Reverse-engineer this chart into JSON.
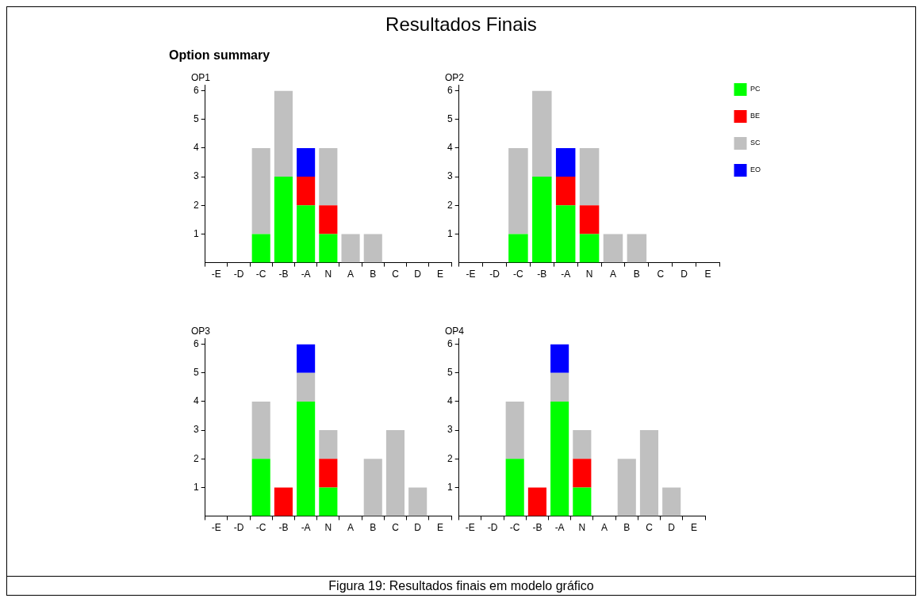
{
  "chart_data": [
    {
      "type": "bar",
      "title": "OP1",
      "annotations": [
        "Resultados Finais",
        "Option summary",
        "Figura 19: Resultados finais em modelo gráfico"
      ],
      "categories": [
        "-E",
        "-D",
        "-C",
        "-B",
        "-A",
        "N",
        "A",
        "B",
        "C",
        "D",
        "E"
      ],
      "stacked": true,
      "grid": false,
      "ylim": [
        0,
        6.2
      ],
      "yticks": [
        1,
        2,
        3,
        4,
        5,
        6
      ],
      "series": [
        {
          "color": "#00ff00",
          "values": [
            0,
            0,
            1,
            3,
            2,
            1,
            0,
            0,
            0,
            0,
            0
          ]
        },
        {
          "color": "#ff0000",
          "values": [
            0,
            0,
            0,
            0,
            1,
            1,
            0,
            0,
            0,
            0,
            0
          ]
        },
        {
          "color": "#c0c0c0",
          "values": [
            0,
            0,
            3,
            3,
            0,
            2,
            1,
            1,
            0,
            0,
            0
          ]
        },
        {
          "color": "#0000ff",
          "values": [
            0,
            0,
            0,
            0,
            1,
            0,
            0,
            0,
            0,
            0,
            0
          ]
        }
      ]
    },
    {
      "type": "bar",
      "title": "OP2",
      "legend": "right",
      "categories": [
        "-E",
        "-D",
        "-C",
        "-B",
        "-A",
        "N",
        "A",
        "B",
        "C",
        "D",
        "E"
      ],
      "stacked": true,
      "grid": false,
      "ylim": [
        0,
        6.2
      ],
      "yticks": [
        1,
        2,
        3,
        4,
        5,
        6
      ],
      "series": [
        {
          "name": "PC",
          "color": "#00ff00",
          "values": [
            0,
            0,
            1,
            3,
            2,
            1,
            0,
            0,
            0,
            0,
            0
          ]
        },
        {
          "name": "BE",
          "color": "#ff0000",
          "values": [
            0,
            0,
            0,
            0,
            1,
            1,
            0,
            0,
            0,
            0,
            0
          ]
        },
        {
          "name": "SC",
          "color": "#c0c0c0",
          "values": [
            0,
            0,
            3,
            3,
            0,
            2,
            1,
            1,
            0,
            0,
            0
          ]
        },
        {
          "name": "EO",
          "color": "#0000ff",
          "values": [
            0,
            0,
            0,
            0,
            1,
            0,
            0,
            0,
            0,
            0,
            0
          ]
        }
      ]
    },
    {
      "type": "bar",
      "title": "OP3",
      "categories": [
        "-E",
        "-D",
        "-C",
        "-B",
        "-A",
        "N",
        "A",
        "B",
        "C",
        "D",
        "E"
      ],
      "stacked": true,
      "grid": false,
      "ylim": [
        0,
        6.2
      ],
      "yticks": [
        1,
        2,
        3,
        4,
        5,
        6
      ],
      "series": [
        {
          "color": "#00ff00",
          "values": [
            0,
            0,
            2,
            0,
            4,
            1,
            0,
            0,
            0,
            0,
            0
          ]
        },
        {
          "color": "#ff0000",
          "values": [
            0,
            0,
            0,
            1,
            0,
            1,
            0,
            0,
            0,
            0,
            0
          ]
        },
        {
          "color": "#c0c0c0",
          "values": [
            0,
            0,
            2,
            0,
            1,
            1,
            0,
            2,
            3,
            1,
            0
          ]
        },
        {
          "color": "#0000ff",
          "values": [
            0,
            0,
            0,
            0,
            1,
            0,
            0,
            0,
            0,
            0,
            0
          ]
        }
      ]
    },
    {
      "type": "bar",
      "title": "OP4",
      "categories": [
        "-E",
        "-D",
        "-C",
        "-B",
        "-A",
        "N",
        "A",
        "B",
        "C",
        "D",
        "E"
      ],
      "stacked": true,
      "grid": false,
      "ylim": [
        0,
        6.2
      ],
      "yticks": [
        1,
        2,
        3,
        4,
        5,
        6
      ],
      "series": [
        {
          "color": "#00ff00",
          "values": [
            0,
            0,
            2,
            0,
            4,
            1,
            0,
            0,
            0,
            0,
            0
          ]
        },
        {
          "color": "#ff0000",
          "values": [
            0,
            0,
            0,
            1,
            0,
            1,
            0,
            0,
            0,
            0,
            0
          ]
        },
        {
          "color": "#c0c0c0",
          "values": [
            0,
            0,
            2,
            0,
            1,
            1,
            0,
            2,
            3,
            1,
            0
          ]
        },
        {
          "color": "#0000ff",
          "values": [
            0,
            0,
            0,
            0,
            1,
            0,
            0,
            0,
            0,
            0,
            0
          ]
        }
      ]
    }
  ]
}
